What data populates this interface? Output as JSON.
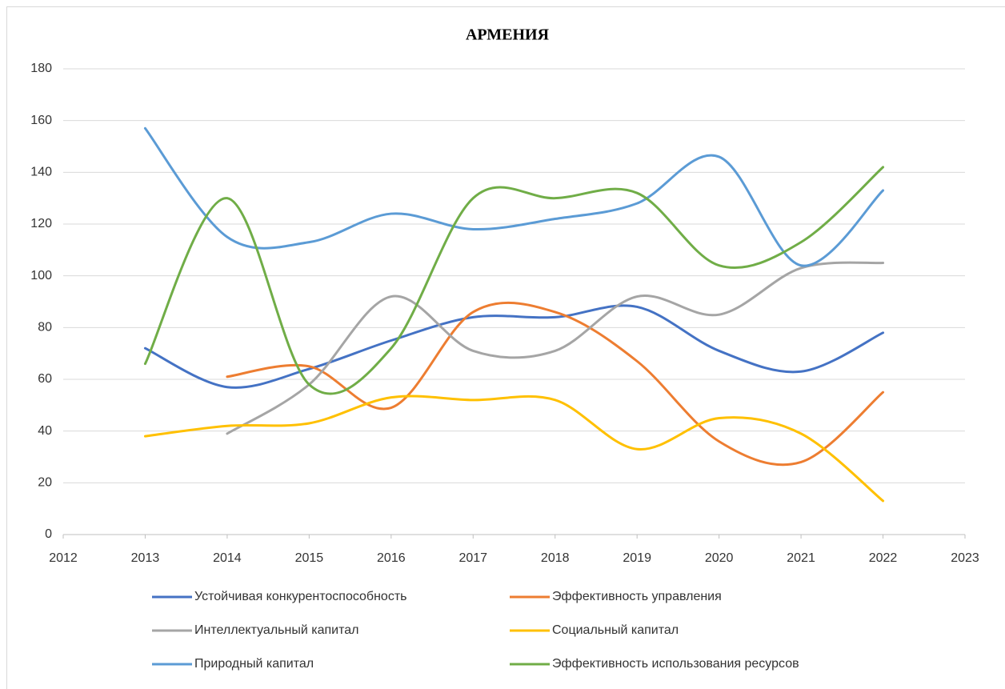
{
  "chart_data": {
    "type": "line",
    "title": "АРМЕНИЯ",
    "x": [
      2013,
      2014,
      2015,
      2016,
      2017,
      2018,
      2019,
      2020,
      2021,
      2022
    ],
    "series": [
      {
        "name": "Устойчивая конкурентоспособность",
        "color": "#4472c4",
        "values": [
          72,
          57,
          64,
          75,
          84,
          84,
          88,
          71,
          63,
          78
        ]
      },
      {
        "name": "Эффективность управления",
        "color": "#ed7d31",
        "values": [
          null,
          61,
          65,
          49,
          86,
          86,
          67,
          36,
          28,
          55
        ]
      },
      {
        "name": "Интеллектуальный капитал",
        "color": "#a5a5a5",
        "values": [
          null,
          39,
          58,
          92,
          71,
          71,
          92,
          85,
          103,
          105
        ]
      },
      {
        "name": "Социальный капитал",
        "color": "#ffc000",
        "values": [
          38,
          42,
          43,
          53,
          52,
          52,
          33,
          45,
          39,
          13
        ]
      },
      {
        "name": "Природный капитал",
        "color": "#5b9bd5",
        "values": [
          157,
          115,
          113,
          124,
          118,
          122,
          128,
          146,
          104,
          133
        ]
      },
      {
        "name": "Эффективность использования ресурсов",
        "color": "#70ad47",
        "values": [
          66,
          130,
          58,
          72,
          130,
          130,
          132,
          104,
          113,
          142
        ]
      }
    ],
    "xlim": [
      2012,
      2023
    ],
    "xticks": [
      2012,
      2013,
      2014,
      2015,
      2016,
      2017,
      2018,
      2019,
      2020,
      2021,
      2022,
      2023
    ],
    "ylim": [
      0,
      180
    ],
    "yticks": [
      0,
      20,
      40,
      60,
      80,
      100,
      120,
      140,
      160,
      180
    ],
    "grid": true,
    "smooth": true,
    "legend": "bottom"
  }
}
